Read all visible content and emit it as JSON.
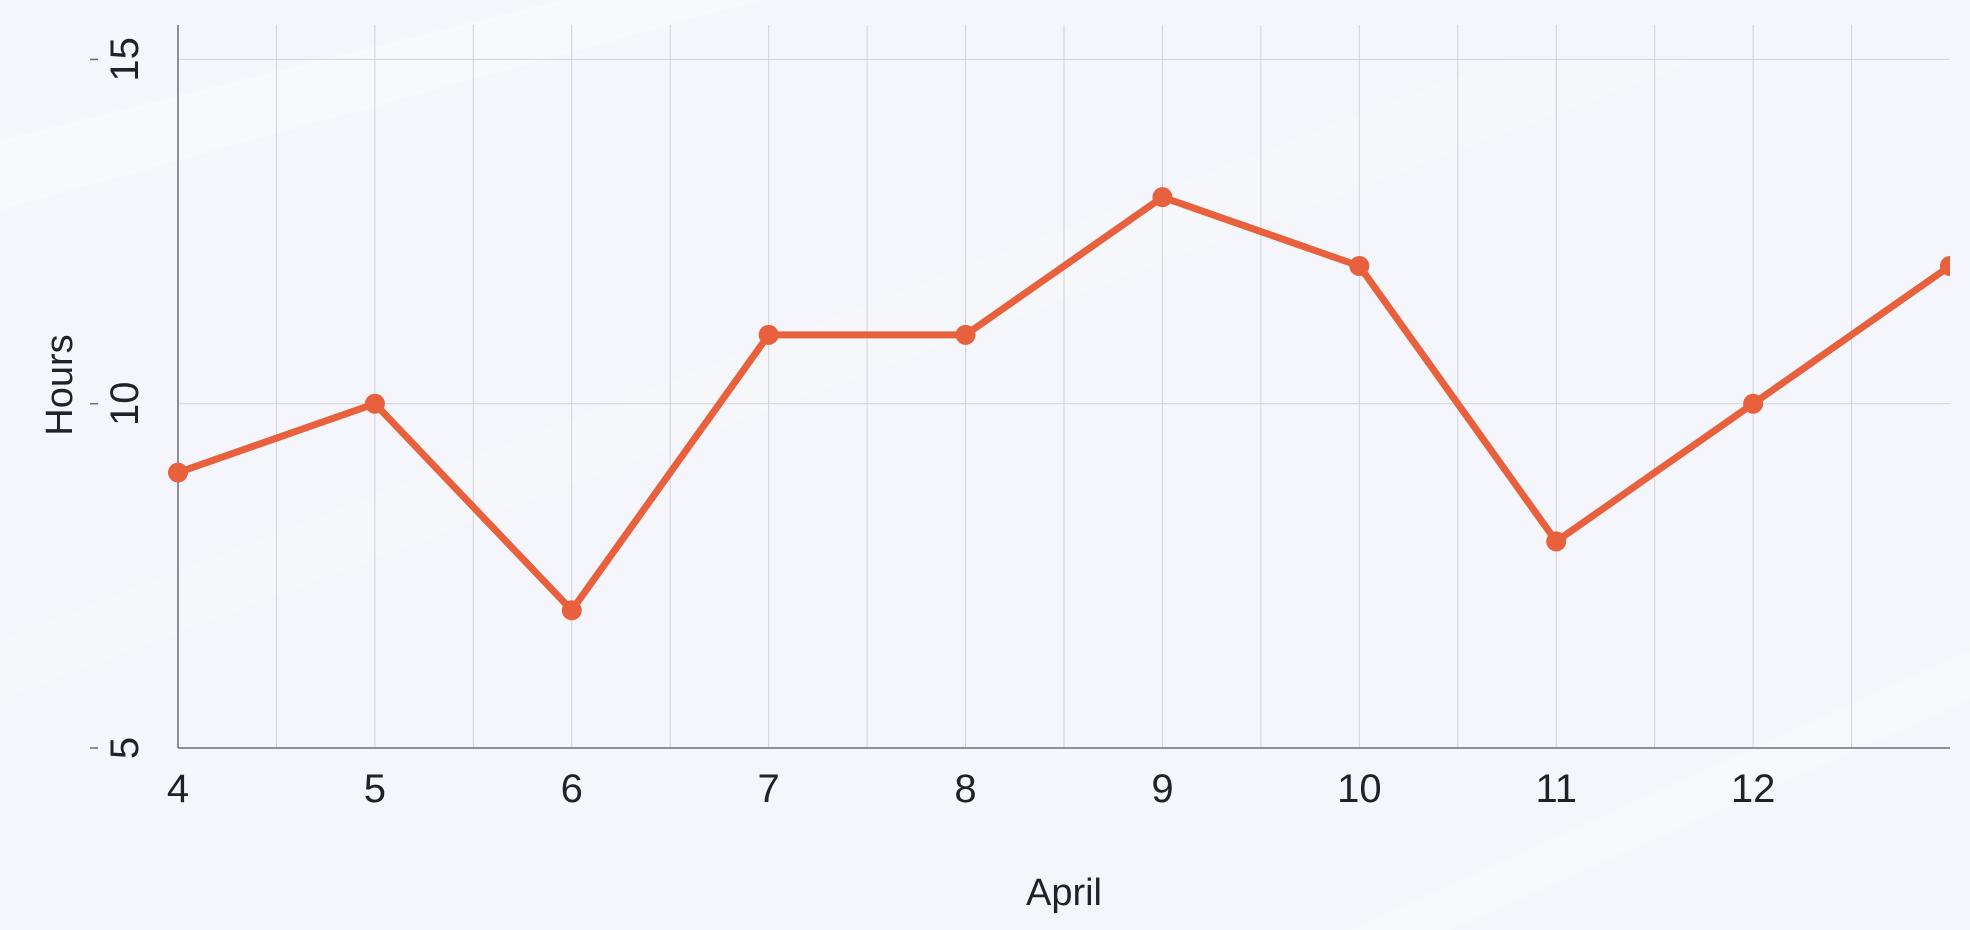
{
  "chart_data": {
    "type": "line",
    "title": "",
    "xlabel": "April",
    "ylabel": "Hours",
    "x": [
      4,
      5,
      6,
      7,
      8,
      9,
      10,
      11,
      12,
      13
    ],
    "x_tick_labels": [
      "4",
      "5",
      "6",
      "7",
      "8",
      "9",
      "10",
      "11",
      "12"
    ],
    "y_tick_labels": [
      "5",
      "10",
      "15"
    ],
    "xlim": [
      4,
      13
    ],
    "ylim": [
      5,
      15.5
    ],
    "grid": true,
    "series": [
      {
        "values": [
          9,
          10,
          7,
          11,
          11,
          13,
          12,
          8,
          10,
          12
        ],
        "color": "#e8603c"
      }
    ]
  }
}
